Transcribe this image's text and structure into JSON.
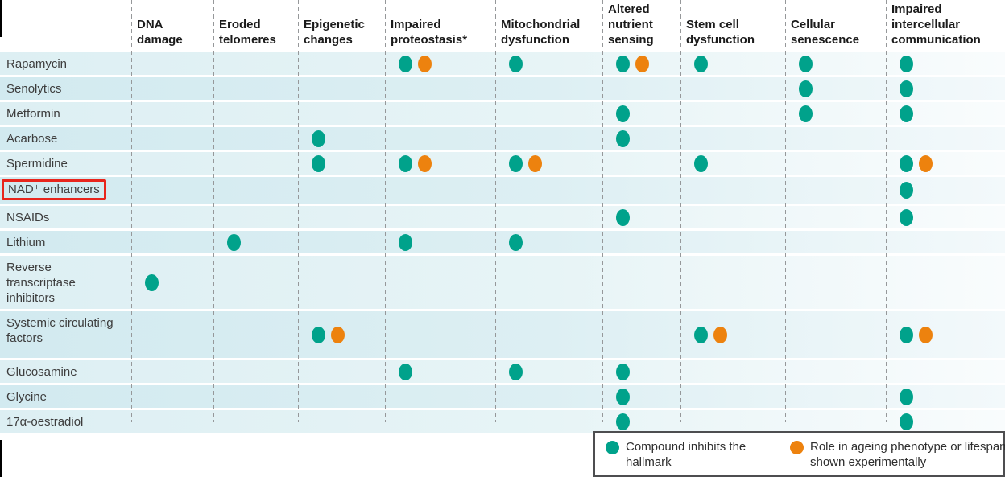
{
  "colors": {
    "teal": "#00a28b",
    "orange": "#ed820e",
    "highlight_red": "#e8251c"
  },
  "figure": {
    "highlight": {
      "row_label": "NAD⁺ enhancers",
      "shape": "red box"
    }
  },
  "legend": {
    "items": [
      {
        "icon": "teal-dot",
        "label": "Compound inhibits the hallmark"
      },
      {
        "icon": "orange-dot",
        "label": "Role in ageing phenotype or lifespan shown experimentally"
      }
    ]
  },
  "chart_data": {
    "type": "table",
    "columns": [
      "DNA damage",
      "Eroded telomeres",
      "Epigenetic changes",
      "Impaired proteostasis*",
      "Mitochondrial dysfunction",
      "Altered nutrient sensing",
      "Stem cell dysfunction",
      "Cellular senescence",
      "Impaired intercellular communication"
    ],
    "cell_codes": {
      "T": "teal dot: compound inhibits the hallmark",
      "TO": "teal dot + orange dot: also role in ageing phenotype or lifespan shown experimentally",
      "": "no mark"
    },
    "rows": [
      {
        "label": "Rapamycin",
        "cells": [
          "",
          "",
          "",
          "TO",
          "T",
          "TO",
          "T",
          "T",
          "T"
        ]
      },
      {
        "label": "Senolytics",
        "cells": [
          "",
          "",
          "",
          "",
          "",
          "",
          "",
          "T",
          "T"
        ]
      },
      {
        "label": "Metformin",
        "cells": [
          "",
          "",
          "",
          "",
          "",
          "T",
          "",
          "T",
          "T"
        ]
      },
      {
        "label": "Acarbose",
        "cells": [
          "",
          "",
          "T",
          "",
          "",
          "T",
          "",
          "",
          ""
        ]
      },
      {
        "label": "Spermidine",
        "cells": [
          "",
          "",
          "T",
          "TO",
          "TO",
          "",
          "T",
          "",
          "TO"
        ]
      },
      {
        "label": "NAD⁺ enhancers",
        "cells": [
          "",
          "",
          "",
          "",
          "",
          "",
          "",
          "",
          "T"
        ]
      },
      {
        "label": "NSAIDs",
        "cells": [
          "",
          "",
          "",
          "",
          "",
          "T",
          "",
          "",
          "T"
        ]
      },
      {
        "label": "Lithium",
        "cells": [
          "",
          "T",
          "",
          "T",
          "T",
          "",
          "",
          "",
          ""
        ]
      },
      {
        "label": "Reverse transcriptase inhibitors",
        "cells": [
          "T",
          "",
          "",
          "",
          "",
          "",
          "",
          "",
          ""
        ]
      },
      {
        "label": "Systemic circulating factors",
        "cells": [
          "",
          "",
          "TO",
          "",
          "",
          "",
          "TO",
          "",
          "TO"
        ]
      },
      {
        "label": "Glucosamine",
        "cells": [
          "",
          "",
          "",
          "T",
          "T",
          "T",
          "",
          "",
          ""
        ]
      },
      {
        "label": "Glycine",
        "cells": [
          "",
          "",
          "",
          "",
          "",
          "T",
          "",
          "",
          "T"
        ]
      },
      {
        "label": "17α-oestradiol",
        "cells": [
          "",
          "",
          "",
          "",
          "",
          "T",
          "",
          "",
          "T"
        ]
      }
    ]
  }
}
